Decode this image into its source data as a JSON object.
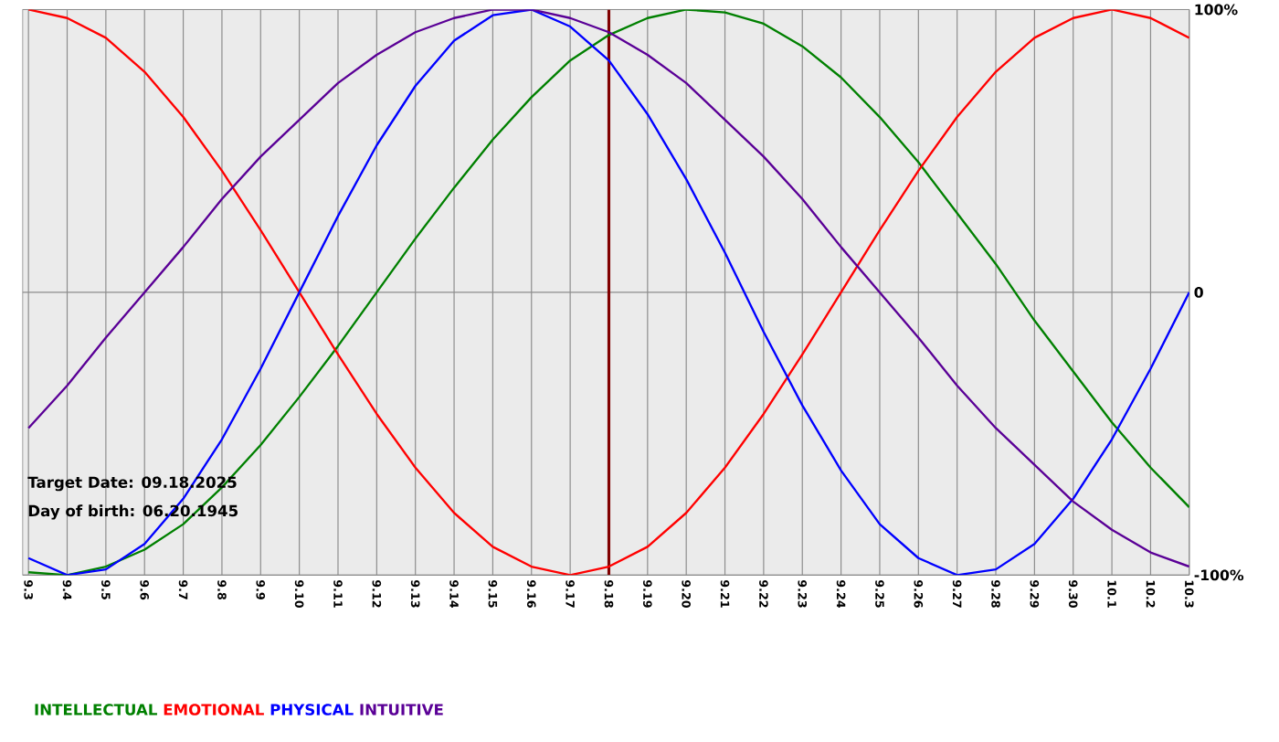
{
  "chart_data": {
    "type": "line",
    "categories": [
      "9.3",
      "9.4",
      "9.5",
      "9.6",
      "9.7",
      "9.8",
      "9.9",
      "9.10",
      "9.11",
      "9.12",
      "9.13",
      "9.14",
      "9.15",
      "9.16",
      "9.17",
      "9.18",
      "9.19",
      "9.20",
      "9.21",
      "9.22",
      "9.23",
      "9.24",
      "9.25",
      "9.26",
      "9.27",
      "9.28",
      "9.29",
      "9.30",
      "10.1",
      "10.2",
      "10.3"
    ],
    "series": [
      {
        "name": "INTELLECTUAL",
        "color": "#008000",
        "values": [
          -99,
          -100,
          -97,
          -91,
          -82,
          -69,
          -54,
          -37,
          -19,
          0,
          19,
          37,
          54,
          69,
          82,
          91,
          97,
          100,
          99,
          95,
          87,
          76,
          62,
          46,
          28,
          10,
          -10,
          -28,
          -46,
          -62,
          -76
        ]
      },
      {
        "name": "EMOTIONAL",
        "color": "#ff0000",
        "values": [
          100,
          97,
          90,
          78,
          62,
          43,
          22,
          0,
          -22,
          -43,
          -62,
          -78,
          -90,
          -97,
          -100,
          -97,
          -90,
          -78,
          -62,
          -43,
          -22,
          0,
          22,
          43,
          62,
          78,
          90,
          97,
          100,
          97,
          90
        ]
      },
      {
        "name": "PHYSICAL",
        "color": "#0000ff",
        "values": [
          -94,
          -100,
          -98,
          -89,
          -73,
          -52,
          -27,
          0,
          27,
          52,
          73,
          89,
          98,
          100,
          94,
          82,
          63,
          40,
          14,
          -14,
          -40,
          -63,
          -82,
          -94,
          -100,
          -98,
          -89,
          -73,
          -52,
          -27,
          0
        ]
      },
      {
        "name": "INTUITIVE",
        "color": "#5a0096",
        "values": [
          -48,
          -33,
          -16,
          0,
          16,
          33,
          48,
          61,
          74,
          84,
          92,
          97,
          100,
          100,
          97,
          92,
          84,
          74,
          61,
          48,
          33,
          16,
          0,
          -16,
          -33,
          -48,
          -61,
          -74,
          -84,
          -92,
          -97
        ]
      }
    ],
    "ylim": [
      -100,
      100
    ],
    "yticks": [
      {
        "value": -100,
        "label": "-100%"
      },
      0,
      {
        "value": 100,
        "label": "100%"
      }
    ],
    "grid": true,
    "legend": "bottom left",
    "ref_lines": [
      {
        "axis": "x",
        "value": "9.18",
        "color": "#800000"
      }
    ],
    "annotations": [
      "Target Date: 09.18.2025",
      "Day of birth: 06.20.1945"
    ]
  }
}
